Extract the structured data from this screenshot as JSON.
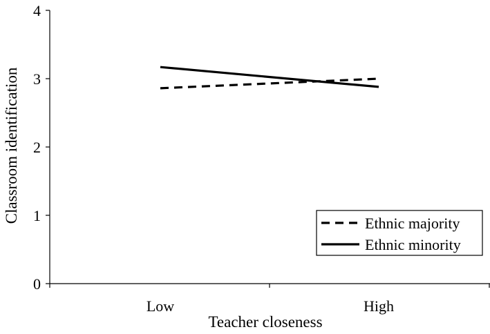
{
  "chart_data": {
    "type": "line",
    "title": "",
    "xlabel": "Teacher closeness",
    "ylabel": "Classroom identification",
    "categories": [
      "Low",
      "High"
    ],
    "ylim": [
      0,
      4
    ],
    "yticks": [
      "0",
      "1",
      "2",
      "3",
      "4"
    ],
    "grid": false,
    "legend": "bottom-right",
    "series": [
      {
        "name": "Ethnic majority",
        "values": [
          2.86,
          3.0
        ],
        "style": "dashed",
        "color": "#000000"
      },
      {
        "name": "Ethnic minority",
        "values": [
          3.17,
          2.88
        ],
        "style": "solid",
        "color": "#000000"
      }
    ]
  }
}
